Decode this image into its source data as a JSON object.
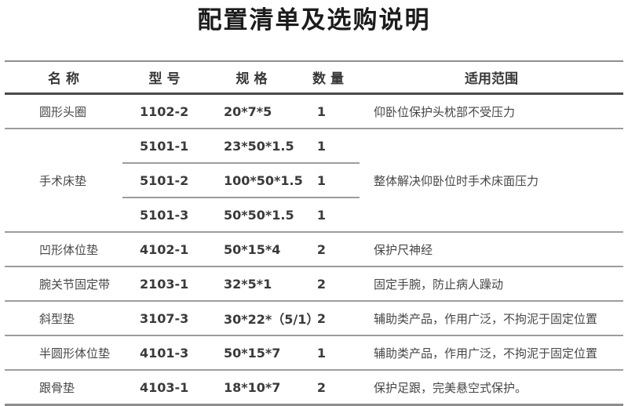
{
  "title": "配置清单及选购说明",
  "colors": {
    "line_outer": "#8d8d8d",
    "line_inner": "#9d9d9d",
    "line_header": "#4a4a4a",
    "title_text": "#1c1c1c",
    "body_text": "#474747"
  },
  "table": {
    "headers": [
      "名 称",
      "型 号",
      "规 格",
      "数 量",
      "适用范围"
    ],
    "rows": [
      {
        "name": "圆形头圈",
        "model": "1102-2",
        "spec": "20*7*5",
        "qty": "1",
        "scope": "仰卧位保护头枕部不受压力"
      },
      {
        "name": "手术床垫",
        "scope": "整体解决仰卧位时手术床面压力",
        "sub": [
          {
            "model": "5101-1",
            "spec": "23*50*1.5",
            "qty": "1"
          },
          {
            "model": "5101-2",
            "spec": "100*50*1.5",
            "qty": "1"
          },
          {
            "model": "5101-3",
            "spec": "50*50*1.5",
            "qty": "1"
          }
        ]
      },
      {
        "name": "凹形体位垫",
        "model": "4102-1",
        "spec": "50*15*4",
        "qty": "2",
        "scope": "保护尺神经"
      },
      {
        "name": "腕关节固定带",
        "model": "2103-1",
        "spec": "32*5*1",
        "qty": "2",
        "scope": "固定手腕，防止病人躁动"
      },
      {
        "name": "斜型垫",
        "model": "3107-3",
        "spec": "30*22*（5/1）",
        "qty": "2",
        "scope": "辅助类产品，作用广泛，不拘泥于固定位置"
      },
      {
        "name": "半圆形体位垫",
        "model": "4101-3",
        "spec": "50*15*7",
        "qty": "1",
        "scope": "辅助类产品，作用广泛，不拘泥于固定位置"
      },
      {
        "name": "跟骨垫",
        "model": "4103-1",
        "spec": "18*10*7",
        "qty": "2",
        "scope": "保护足跟，完美悬空式保护。"
      }
    ]
  }
}
